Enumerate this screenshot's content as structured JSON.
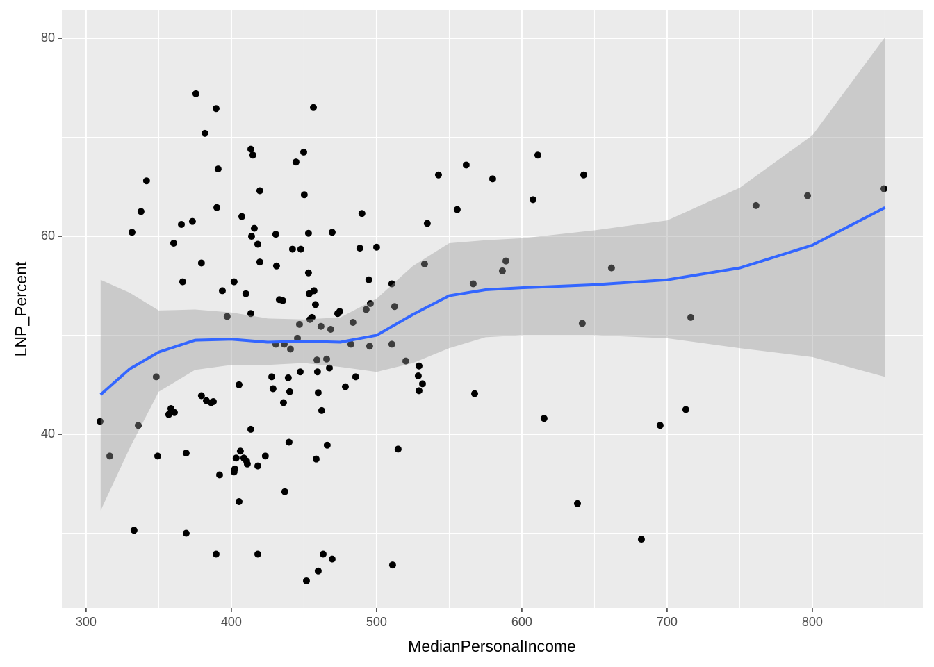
{
  "chart_data": {
    "type": "scatter",
    "xlabel": "MedianPersonalIncome",
    "ylabel": "LNP_Percent",
    "x": [
      309.6,
      316.3,
      331.6,
      333.0,
      335.9,
      337.8,
      341.6,
      348.3,
      349.3,
      356.9,
      358.4,
      360.3,
      360.8,
      365.6,
      366.5,
      368.9,
      368.9,
      373.2,
      375.6,
      379.4,
      379.4,
      381.8,
      382.8,
      386.1,
      387.6,
      389.5,
      389.5,
      390.0,
      390.9,
      391.9,
      393.8,
      397.1,
      401.9,
      401.9,
      402.4,
      403.3,
      405.3,
      405.3,
      406.2,
      407.2,
      408.6,
      410.0,
      410.5,
      411.0,
      413.4,
      413.4,
      413.4,
      413.9,
      414.8,
      415.8,
      418.2,
      418.2,
      418.2,
      419.6,
      419.6,
      423.4,
      427.8,
      428.7,
      430.6,
      430.6,
      431.1,
      433.0,
      435.4,
      435.9,
      436.4,
      436.8,
      439.2,
      439.7,
      440.2,
      440.7,
      442.1,
      444.5,
      445.5,
      446.9,
      447.4,
      447.8,
      449.8,
      450.2,
      451.7,
      453.1,
      453.1,
      453.6,
      454.1,
      455.5,
      456.5,
      456.9,
      457.9,
      458.4,
      458.9,
      459.3,
      459.8,
      459.8,
      461.7,
      462.2,
      463.2,
      465.6,
      466.0,
      467.5,
      468.4,
      469.4,
      469.4,
      473.2,
      474.6,
      478.5,
      482.3,
      483.7,
      485.6,
      488.5,
      489.9,
      492.8,
      494.7,
      495.2,
      495.7,
      500.0,
      510.5,
      510.5,
      511.0,
      512.4,
      514.8,
      520.1,
      528.7,
      529.2,
      529.2,
      531.6,
      533.0,
      534.9,
      542.6,
      555.5,
      561.7,
      566.5,
      567.5,
      579.9,
      586.6,
      589.0,
      607.7,
      611.0,
      615.3,
      638.3,
      641.6,
      642.6,
      661.7,
      682.3,
      695.2,
      712.9,
      716.3,
      761.2,
      796.7,
      849.3
    ],
    "y": [
      41.3,
      37.8,
      60.4,
      30.3,
      40.9,
      62.5,
      65.6,
      45.8,
      37.8,
      42.0,
      42.6,
      59.3,
      42.2,
      61.2,
      55.4,
      38.1,
      30.0,
      61.5,
      74.4,
      57.3,
      43.9,
      70.4,
      43.4,
      43.2,
      43.3,
      27.9,
      72.9,
      62.9,
      66.8,
      35.9,
      54.5,
      51.9,
      55.4,
      36.2,
      36.5,
      37.6,
      45.0,
      33.2,
      38.3,
      62.0,
      37.6,
      54.2,
      37.3,
      37.0,
      40.5,
      52.2,
      68.8,
      60.0,
      68.2,
      60.8,
      59.2,
      36.8,
      27.9,
      57.4,
      64.6,
      37.8,
      45.8,
      44.6,
      60.2,
      49.1,
      57.0,
      53.6,
      53.5,
      43.2,
      49.1,
      34.2,
      45.7,
      39.2,
      44.3,
      48.6,
      58.7,
      67.5,
      49.7,
      51.1,
      46.3,
      58.7,
      68.5,
      64.2,
      25.2,
      60.3,
      56.3,
      54.2,
      51.6,
      51.8,
      73.0,
      54.5,
      53.1,
      37.5,
      47.5,
      46.3,
      26.2,
      44.2,
      50.9,
      42.4,
      27.9,
      47.6,
      38.9,
      46.7,
      50.6,
      60.4,
      27.4,
      52.2,
      52.4,
      44.8,
      49.1,
      51.3,
      45.8,
      58.8,
      62.3,
      52.6,
      55.6,
      48.9,
      53.2,
      58.9,
      55.2,
      49.1,
      26.8,
      52.9,
      38.5,
      47.4,
      45.9,
      44.4,
      46.9,
      45.1,
      57.2,
      61.3,
      66.2,
      62.7,
      67.2,
      55.2,
      44.1,
      65.8,
      56.5,
      57.5,
      63.7,
      68.2,
      41.6,
      33.0,
      51.2,
      66.2,
      56.8,
      29.4,
      40.9,
      42.5,
      51.8,
      63.1,
      64.1,
      64.8
    ],
    "color": "#000000",
    "smooth": {
      "x": [
        310,
        330,
        350,
        375,
        400,
        425,
        450,
        475,
        500,
        525,
        550,
        575,
        600,
        650,
        700,
        750,
        800,
        850
      ],
      "y": [
        44.0,
        46.6,
        48.3,
        49.5,
        49.6,
        49.3,
        49.4,
        49.3,
        50.0,
        52.1,
        54.0,
        54.6,
        54.8,
        55.1,
        55.6,
        56.8,
        59.1,
        62.9
      ],
      "lower": [
        32.3,
        38.6,
        44.3,
        46.5,
        47.0,
        47.0,
        47.2,
        46.8,
        46.3,
        47.2,
        48.7,
        49.8,
        50.0,
        50.0,
        49.7,
        48.7,
        47.8,
        45.8
      ],
      "upper": [
        55.6,
        54.3,
        52.5,
        52.6,
        52.3,
        51.7,
        51.6,
        51.8,
        53.7,
        57.0,
        59.3,
        59.6,
        59.8,
        60.6,
        61.6,
        64.9,
        70.2,
        80.1
      ],
      "color": "#3366FF",
      "band_color": "#999999"
    },
    "xlim": [
      283.3,
      876.1
    ],
    "ylim": [
      22.46,
      82.88
    ],
    "xticks": [
      300,
      400,
      500,
      600,
      700,
      800
    ],
    "yticks": [
      40,
      60,
      80
    ],
    "grid": true
  }
}
